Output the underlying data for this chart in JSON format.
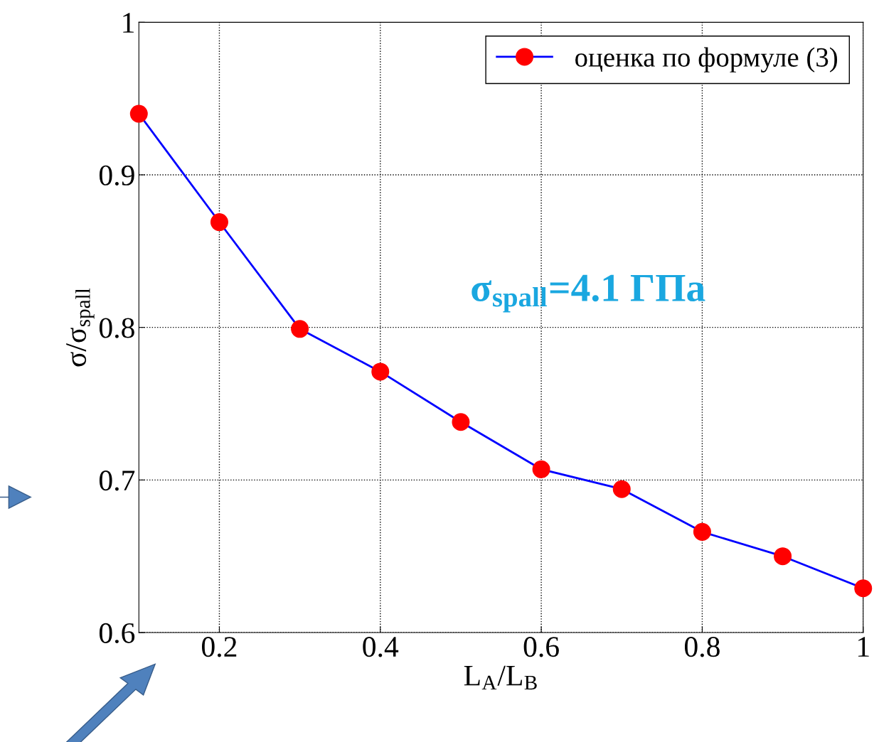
{
  "chart_data": {
    "type": "line",
    "xlabel": "L$_{A}$/L$_{B}$",
    "ylabel": "σ/σ$_{spall}$",
    "x": [
      0.1,
      0.2,
      0.3,
      0.4,
      0.5,
      0.6,
      0.7,
      0.8,
      0.9,
      1.0
    ],
    "series": [
      {
        "name": "оценка по формуле (3)",
        "color": "#0000ff",
        "colors": [
          "#ff0000",
          "#ff0000",
          "#ff0000",
          "#ff0000",
          "#ff0000",
          "#ff0000",
          "#ff0000",
          "#ff0000",
          "#ff0000",
          "#ff0000"
        ],
        "values": [
          0.94,
          0.869,
          0.799,
          0.771,
          0.738,
          0.707,
          0.694,
          0.666,
          0.65,
          0.629
        ]
      }
    ],
    "xlim": [
      0.1,
      1
    ],
    "xticks": [
      0.2,
      0.4,
      0.6,
      0.8,
      1
    ],
    "ylim": [
      0.6,
      1
    ],
    "yticks": [
      0.6,
      0.7,
      0.8,
      0.9,
      1
    ],
    "annotations": [
      "σ$_{spall}$=4.1 ГПа"
    ],
    "grid": true,
    "legend": "top right",
    "marker": "circle",
    "line_style": "solid"
  }
}
